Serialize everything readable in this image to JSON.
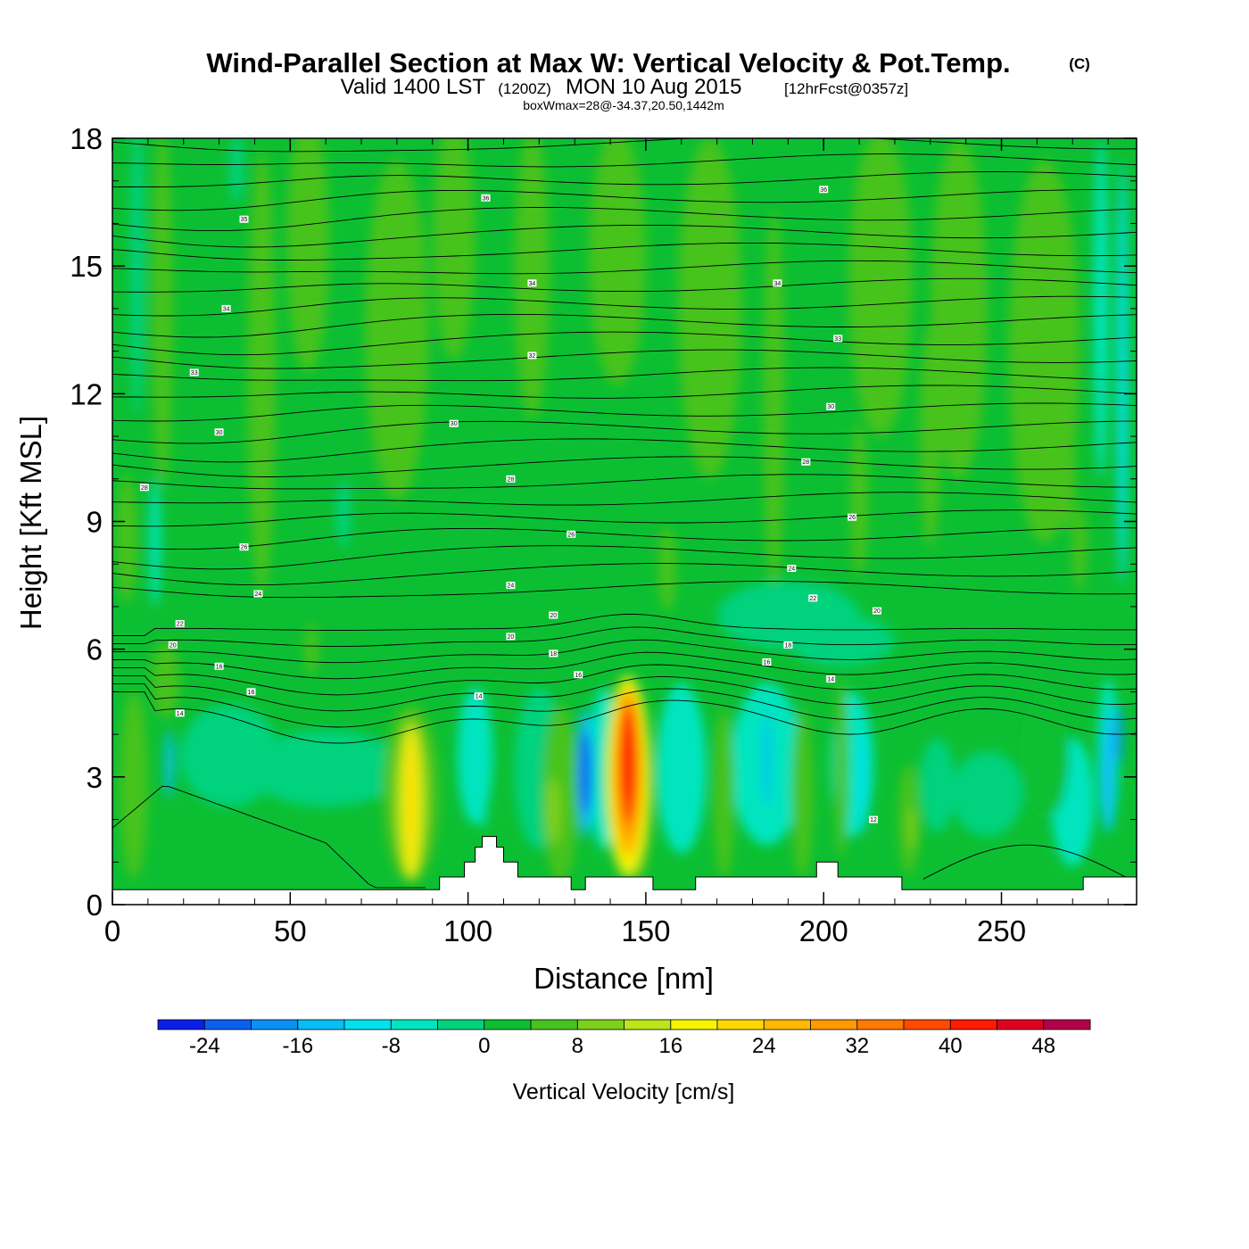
{
  "chart_data": {
    "type": "heatmap",
    "title": "Wind-Parallel Section at Max W: Vertical Velocity & Pot.Temp.",
    "title_mark": "(C)",
    "subtitle": {
      "valid": "Valid 1400 LST",
      "utc": "(1200Z)",
      "date": "MON 10 Aug 2015",
      "forecast": "[12hrFcst@0357z]"
    },
    "info_line": "boxWmax=28@-34.37,20.50,1442m",
    "xlabel": "Distance [nm]",
    "ylabel": "Height [Kft MSL]",
    "xlim": [
      0,
      288
    ],
    "ylim": [
      0,
      18
    ],
    "xticks": [
      "0",
      "50",
      "100",
      "150",
      "200",
      "250"
    ],
    "yticks": [
      "0",
      "3",
      "6",
      "9",
      "12",
      "15",
      "18"
    ],
    "colorbar": {
      "label": "Vertical Velocity [cm/s]",
      "tick_labels": [
        "-24",
        "-16",
        "-8",
        "0",
        "8",
        "16",
        "24",
        "32",
        "40",
        "48"
      ],
      "bins": [
        -28,
        -24,
        -20,
        -16,
        -12,
        -8,
        -4,
        0,
        4,
        8,
        12,
        16,
        20,
        24,
        28,
        32,
        36,
        40,
        44,
        48,
        52
      ],
      "colors": [
        "#0b1ee8",
        "#0b5ff0",
        "#0891f2",
        "#07bff5",
        "#02e1ee",
        "#00e5c0",
        "#00d27e",
        "#0cbf32",
        "#46c31e",
        "#7fd01b",
        "#bde61a",
        "#f6f500",
        "#ffd800",
        "#ffb900",
        "#ff9a00",
        "#ff7a00",
        "#ff4a00",
        "#ff1a00",
        "#e00020",
        "#b5004a"
      ]
    },
    "updraft_cores": [
      {
        "x": 84,
        "top": 4.6,
        "bottom": 0.5,
        "peak": 24
      },
      {
        "x": 145,
        "top": 5.2,
        "bottom": 0.8,
        "peak": 44
      }
    ],
    "downdraft_cores": [
      {
        "x": 103,
        "top": 3.4,
        "bottom": 1.6,
        "peak": -8
      },
      {
        "x": 133,
        "top": 4.6,
        "bottom": 1.4,
        "peak": -24
      },
      {
        "x": 16,
        "top": 4.2,
        "bottom": 2.0,
        "peak": -16
      },
      {
        "x": 276,
        "top": 5.4,
        "bottom": 1.5,
        "peak": -24
      }
    ],
    "contour_labels": [
      {
        "x": 105,
        "y": 16.6,
        "text": "36"
      },
      {
        "x": 200,
        "y": 16.8,
        "text": "36"
      },
      {
        "x": 37,
        "y": 16.1,
        "text": "35"
      },
      {
        "x": 118,
        "y": 14.6,
        "text": "34"
      },
      {
        "x": 187,
        "y": 14.6,
        "text": "34"
      },
      {
        "x": 32,
        "y": 14.0,
        "text": "34"
      },
      {
        "x": 204,
        "y": 13.3,
        "text": "33"
      },
      {
        "x": 118,
        "y": 12.9,
        "text": "32"
      },
      {
        "x": 23,
        "y": 12.5,
        "text": "33"
      },
      {
        "x": 202,
        "y": 11.7,
        "text": "30"
      },
      {
        "x": 96,
        "y": 11.3,
        "text": "30"
      },
      {
        "x": 30,
        "y": 11.1,
        "text": "30"
      },
      {
        "x": 195,
        "y": 10.4,
        "text": "28"
      },
      {
        "x": 112,
        "y": 10.0,
        "text": "28"
      },
      {
        "x": 9,
        "y": 9.8,
        "text": "28"
      },
      {
        "x": 208,
        "y": 9.1,
        "text": "26"
      },
      {
        "x": 129,
        "y": 8.7,
        "text": "26"
      },
      {
        "x": 37,
        "y": 8.4,
        "text": "26"
      },
      {
        "x": 191,
        "y": 7.9,
        "text": "24"
      },
      {
        "x": 112,
        "y": 7.5,
        "text": "24"
      },
      {
        "x": 41,
        "y": 7.3,
        "text": "24"
      },
      {
        "x": 197,
        "y": 7.2,
        "text": "22"
      },
      {
        "x": 215,
        "y": 6.9,
        "text": "20"
      },
      {
        "x": 124,
        "y": 6.8,
        "text": "20"
      },
      {
        "x": 19,
        "y": 6.6,
        "text": "22"
      },
      {
        "x": 112,
        "y": 6.3,
        "text": "20"
      },
      {
        "x": 17,
        "y": 6.1,
        "text": "20"
      },
      {
        "x": 190,
        "y": 6.1,
        "text": "18"
      },
      {
        "x": 124,
        "y": 5.9,
        "text": "18"
      },
      {
        "x": 184,
        "y": 5.7,
        "text": "16"
      },
      {
        "x": 30,
        "y": 5.6,
        "text": "16"
      },
      {
        "x": 131,
        "y": 5.4,
        "text": "16"
      },
      {
        "x": 202,
        "y": 5.3,
        "text": "14"
      },
      {
        "x": 39,
        "y": 5.0,
        "text": "16"
      },
      {
        "x": 103,
        "y": 4.9,
        "text": "14"
      },
      {
        "x": 19,
        "y": 4.5,
        "text": "14"
      },
      {
        "x": 214,
        "y": 2.0,
        "text": "12"
      }
    ]
  }
}
